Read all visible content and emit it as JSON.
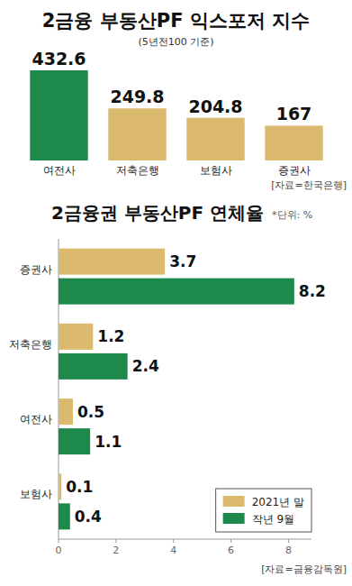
{
  "chart_data": [
    {
      "type": "bar",
      "title": "2금융 부동산PF 익스포저 지수",
      "subtitle": "(5년전100 기준)",
      "source": "[자료=한국은행]",
      "categories": [
        "여전사",
        "저축은행",
        "보험사",
        "증권사"
      ],
      "values": [
        432.6,
        249.8,
        204.8,
        167
      ],
      "colors": [
        "#1b8a4b",
        "#dbb96f",
        "#dbb96f",
        "#dbb96f"
      ],
      "ylim": [
        0,
        450
      ],
      "tick_labels": "x",
      "data_labels": true
    },
    {
      "type": "bar",
      "orientation": "horizontal",
      "title": "2금융권 부동산PF 연체율",
      "subtitle": "*단위: %",
      "source": "[자료=금융감독원]",
      "categories": [
        "증권사",
        "저축은행",
        "여전사",
        "보험사"
      ],
      "series": [
        {
          "name": "2021년 말",
          "color": "#dbb96f",
          "values": [
            3.7,
            1.2,
            0.5,
            0.1
          ]
        },
        {
          "name": "작년 9월",
          "color": "#1b8a4b",
          "values": [
            8.2,
            2.4,
            1.1,
            0.4
          ]
        }
      ],
      "xlim": [
        0,
        8.8
      ],
      "xticks": [
        0,
        2,
        4,
        6,
        8
      ],
      "data_labels": true,
      "grid": false,
      "legend": "lower right"
    }
  ]
}
